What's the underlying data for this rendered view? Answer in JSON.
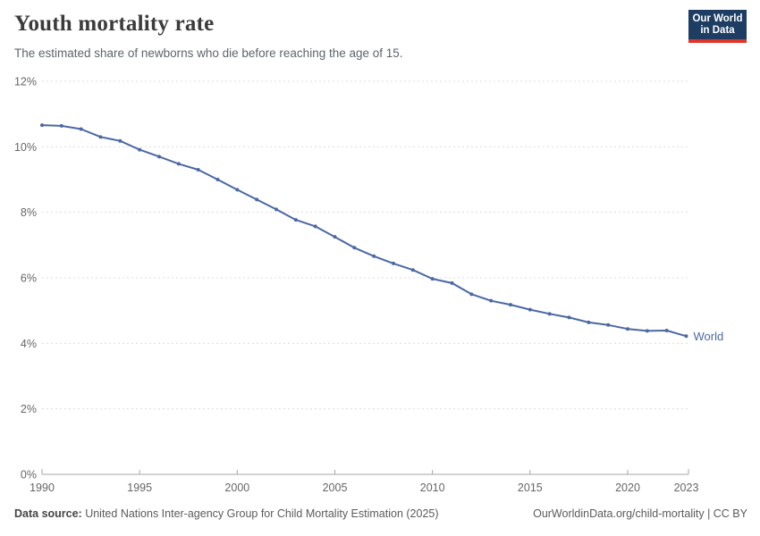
{
  "header": {
    "title": "Youth mortality rate",
    "subtitle": "The estimated share of newborns who die before reaching the age of 15.",
    "logo": {
      "line1": "Our World",
      "line2": "in Data",
      "bg_color": "#1d3d63",
      "accent_color": "#e0362a"
    }
  },
  "chart_data": {
    "type": "line",
    "title": "Youth mortality rate",
    "subtitle": "The estimated share of newborns who die before reaching the age of 15.",
    "xlabel": "",
    "ylabel": "",
    "xlim": [
      1990,
      2023
    ],
    "ylim": [
      0,
      12
    ],
    "grid": "horizontal dashed",
    "legend_position": "end-of-line label",
    "x_ticks": [
      1990,
      1995,
      2000,
      2005,
      2010,
      2015,
      2020,
      2023
    ],
    "x_tick_labels": [
      "1990",
      "1995",
      "2000",
      "2005",
      "2010",
      "2015",
      "2020",
      "2023"
    ],
    "y_ticks": [
      0,
      2,
      4,
      6,
      8,
      10,
      12
    ],
    "y_tick_labels": [
      "0%",
      "2%",
      "4%",
      "6%",
      "8%",
      "10%",
      "12%"
    ],
    "grid_color": "#dddddd",
    "axis_color": "#a6a6a6",
    "tick_label_color": "#666666",
    "series": [
      {
        "name": "World",
        "color": "#4a68a4",
        "x": [
          1990,
          1991,
          1992,
          1993,
          1994,
          1995,
          1996,
          1997,
          1998,
          1999,
          2000,
          2001,
          2002,
          2003,
          2004,
          2005,
          2006,
          2007,
          2008,
          2009,
          2010,
          2011,
          2012,
          2013,
          2014,
          2015,
          2016,
          2017,
          2018,
          2019,
          2020,
          2021,
          2022,
          2023
        ],
        "values": [
          10.66,
          10.64,
          10.54,
          10.3,
          10.18,
          9.91,
          9.7,
          9.48,
          9.3,
          9.0,
          8.69,
          8.39,
          8.09,
          7.77,
          7.57,
          7.25,
          6.92,
          6.66,
          6.44,
          6.24,
          5.97,
          5.84,
          5.5,
          5.3,
          5.18,
          5.03,
          4.9,
          4.79,
          4.64,
          4.56,
          4.44,
          4.38,
          4.39,
          4.22
        ],
        "unit": "%"
      }
    ]
  },
  "footer": {
    "source_label": "Data source:",
    "source_text": " United Nations Inter-agency Group for Child Mortality Estimation (2025)",
    "link_text": "OurWorldinData.org/child-mortality | CC BY"
  }
}
